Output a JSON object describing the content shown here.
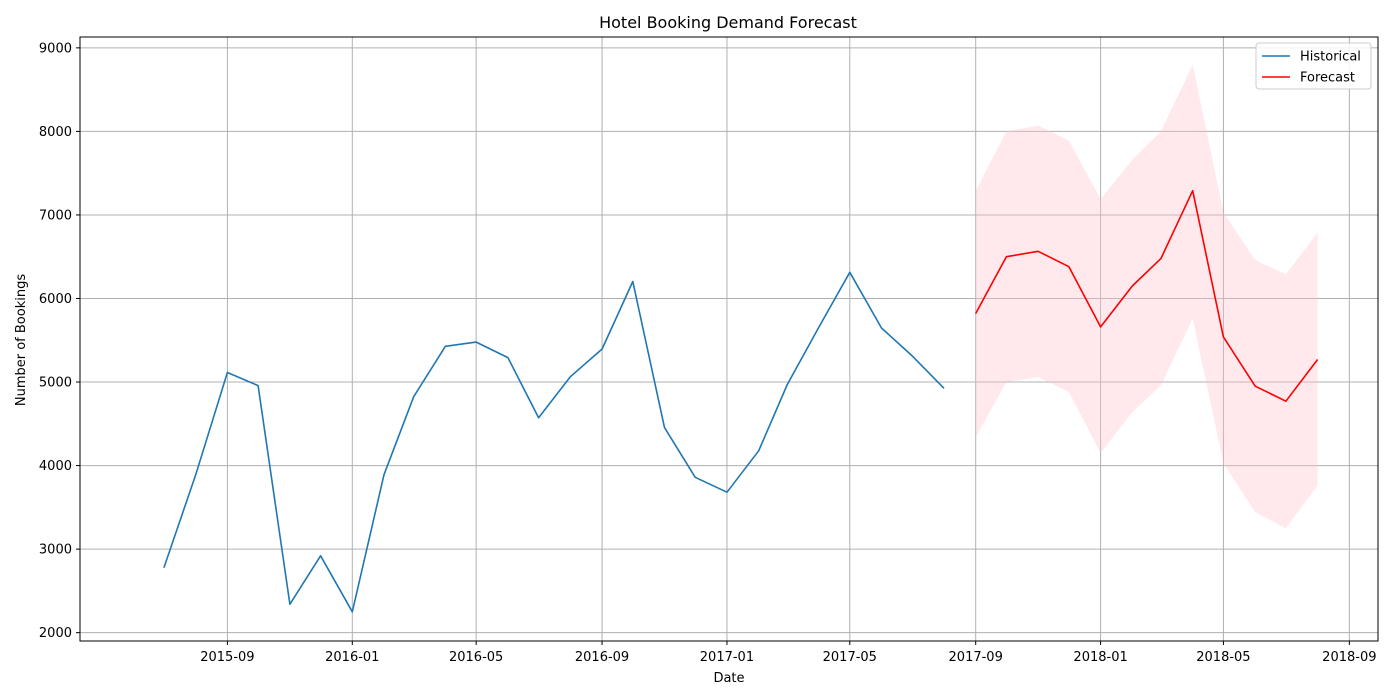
{
  "chart_data": {
    "type": "line",
    "title": "Hotel Booking Demand Forecast",
    "xlabel": "Date",
    "ylabel": "Number of Bookings",
    "ylim": [
      1900,
      9130
    ],
    "yticks": [
      2000,
      3000,
      4000,
      5000,
      6000,
      7000,
      8000,
      9000
    ],
    "xlim": [
      "2015-04-10",
      "2018-09-29"
    ],
    "xticks": [
      "2015-09",
      "2016-01",
      "2016-05",
      "2016-09",
      "2017-01",
      "2017-05",
      "2017-09",
      "2018-01",
      "2018-05",
      "2018-09"
    ],
    "grid": true,
    "legend_position": "upper right",
    "series": [
      {
        "name": "Historical",
        "color": "#1f77b4",
        "x": [
          "2015-07-01",
          "2015-08-01",
          "2015-09-01",
          "2015-10-01",
          "2015-11-01",
          "2015-12-01",
          "2016-01-01",
          "2016-02-01",
          "2016-03-01",
          "2016-04-01",
          "2016-05-01",
          "2016-06-01",
          "2016-07-01",
          "2016-08-01",
          "2016-09-01",
          "2016-10-01",
          "2016-11-01",
          "2016-12-01",
          "2017-01-01",
          "2017-02-01",
          "2017-03-01",
          "2017-04-01",
          "2017-05-01",
          "2017-06-01",
          "2017-07-01",
          "2017-08-01"
        ],
        "values": [
          2776,
          3889,
          5114,
          4957,
          2340,
          2920,
          2249,
          3891,
          4824,
          5428,
          5478,
          5292,
          4572,
          5063,
          5395,
          6203,
          4454,
          3860,
          3681,
          4177,
          4970,
          5661,
          6313,
          5647,
          5313,
          4925
        ]
      },
      {
        "name": "Forecast",
        "color": "#ff0000",
        "x": [
          "2017-09-01",
          "2017-10-01",
          "2017-11-01",
          "2017-12-01",
          "2018-01-01",
          "2018-02-01",
          "2018-03-01",
          "2018-04-01",
          "2018-05-01",
          "2018-06-01",
          "2018-07-01",
          "2018-08-01"
        ],
        "values": [
          5820,
          6500,
          6565,
          6380,
          5660,
          6150,
          6480,
          7290,
          5540,
          4950,
          4770,
          5270
        ],
        "upper": [
          7290,
          8000,
          8070,
          7890,
          7190,
          7660,
          8000,
          8800,
          7030,
          6460,
          6290,
          6790
        ],
        "lower": [
          4340,
          5000,
          5060,
          4880,
          4150,
          4640,
          4960,
          5760,
          4030,
          3440,
          3250,
          3760
        ],
        "band_color": "#ffc0cb"
      }
    ]
  }
}
